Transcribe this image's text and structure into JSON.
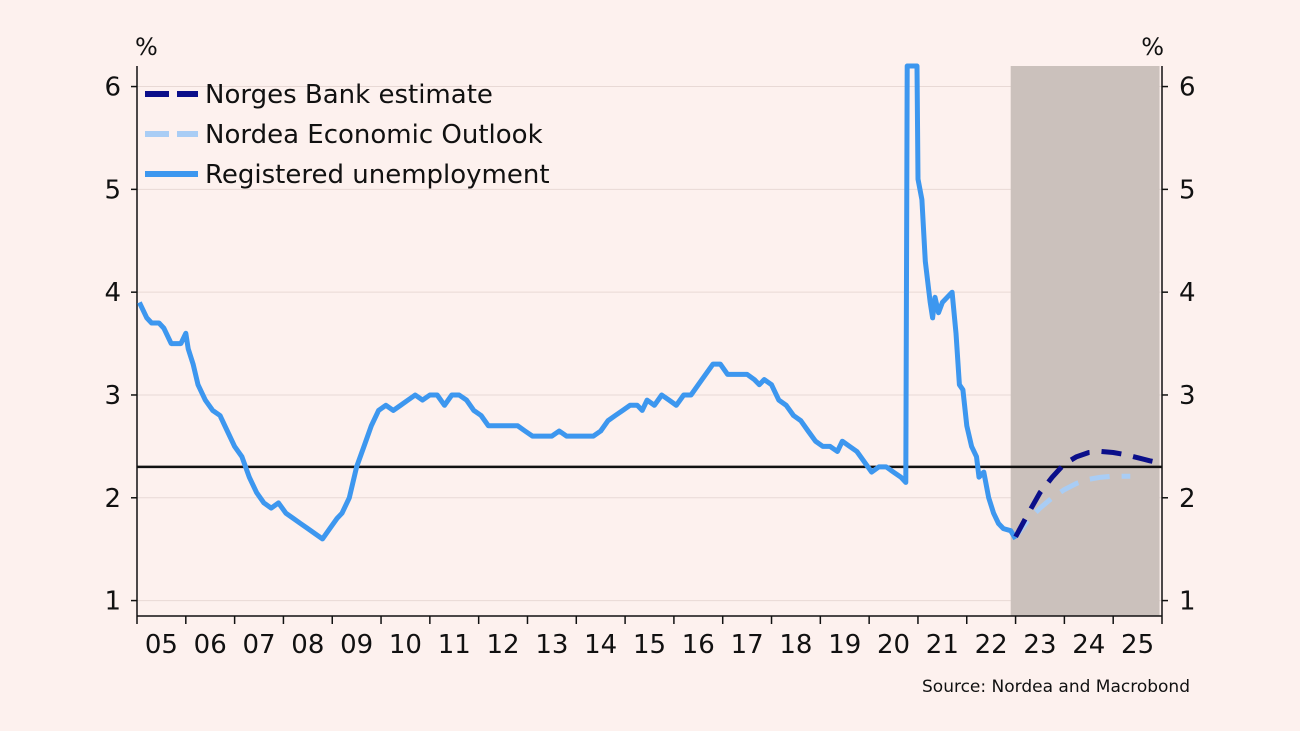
{
  "chart_data": {
    "type": "line",
    "x_unit": "year",
    "left_axis_label": "%",
    "right_axis_label": "%",
    "ylim": [
      0.85,
      6.2
    ],
    "yticks": [
      1,
      2,
      3,
      4,
      5,
      6
    ],
    "xlim": [
      2005.0,
      2026.0
    ],
    "xticks": [
      {
        "year": 2005.5,
        "label": "05"
      },
      {
        "year": 2006.5,
        "label": "06"
      },
      {
        "year": 2007.5,
        "label": "07"
      },
      {
        "year": 2008.5,
        "label": "08"
      },
      {
        "year": 2009.5,
        "label": "09"
      },
      {
        "year": 2010.5,
        "label": "10"
      },
      {
        "year": 2011.5,
        "label": "11"
      },
      {
        "year": 2012.5,
        "label": "12"
      },
      {
        "year": 2013.5,
        "label": "13"
      },
      {
        "year": 2014.5,
        "label": "14"
      },
      {
        "year": 2015.5,
        "label": "15"
      },
      {
        "year": 2016.5,
        "label": "16"
      },
      {
        "year": 2017.5,
        "label": "17"
      },
      {
        "year": 2018.5,
        "label": "18"
      },
      {
        "year": 2019.5,
        "label": "19"
      },
      {
        "year": 2020.5,
        "label": "20"
      },
      {
        "year": 2021.5,
        "label": "21"
      },
      {
        "year": 2022.5,
        "label": "22"
      },
      {
        "year": 2023.5,
        "label": "23"
      },
      {
        "year": 2024.5,
        "label": "24"
      },
      {
        "year": 2025.5,
        "label": "25"
      }
    ],
    "reference_line": {
      "value": 2.3,
      "color": "#111111"
    },
    "forecast_shading": {
      "from": 2022.9,
      "to": 2025.95,
      "color": "#cbc1bc"
    },
    "grid": true,
    "legend_position": "top-left",
    "series": [
      {
        "name": "Norges Bank estimate",
        "color": "#0b0f8a",
        "style": "dashed",
        "points": [
          [
            2023.0,
            1.62
          ],
          [
            2023.25,
            1.84
          ],
          [
            2023.5,
            2.05
          ],
          [
            2023.75,
            2.2
          ],
          [
            2024.0,
            2.33
          ],
          [
            2024.25,
            2.4
          ],
          [
            2024.5,
            2.44
          ],
          [
            2024.75,
            2.45
          ],
          [
            2025.0,
            2.44
          ],
          [
            2025.25,
            2.42
          ],
          [
            2025.5,
            2.39
          ],
          [
            2025.75,
            2.36
          ],
          [
            2025.95,
            2.34
          ]
        ]
      },
      {
        "name": "Nordea Economic Outlook",
        "color": "#a9cdf5",
        "style": "dashed",
        "points": [
          [
            2023.0,
            1.62
          ],
          [
            2023.25,
            1.78
          ],
          [
            2023.5,
            1.9
          ],
          [
            2023.75,
            2.0
          ],
          [
            2024.0,
            2.08
          ],
          [
            2024.25,
            2.14
          ],
          [
            2024.5,
            2.18
          ],
          [
            2024.75,
            2.2
          ],
          [
            2025.0,
            2.21
          ],
          [
            2025.35,
            2.21
          ]
        ]
      },
      {
        "name": "Registered unemployment",
        "color": "#3d97ef",
        "style": "solid",
        "points": [
          [
            2005.05,
            3.9
          ],
          [
            2005.2,
            3.75
          ],
          [
            2005.3,
            3.7
          ],
          [
            2005.45,
            3.7
          ],
          [
            2005.55,
            3.65
          ],
          [
            2005.7,
            3.5
          ],
          [
            2005.9,
            3.5
          ],
          [
            2006.0,
            3.6
          ],
          [
            2006.05,
            3.45
          ],
          [
            2006.15,
            3.3
          ],
          [
            2006.25,
            3.1
          ],
          [
            2006.4,
            2.95
          ],
          [
            2006.55,
            2.85
          ],
          [
            2006.7,
            2.8
          ],
          [
            2006.85,
            2.65
          ],
          [
            2007.0,
            2.5
          ],
          [
            2007.15,
            2.4
          ],
          [
            2007.3,
            2.2
          ],
          [
            2007.45,
            2.05
          ],
          [
            2007.6,
            1.95
          ],
          [
            2007.75,
            1.9
          ],
          [
            2007.9,
            1.95
          ],
          [
            2008.05,
            1.85
          ],
          [
            2008.2,
            1.8
          ],
          [
            2008.35,
            1.75
          ],
          [
            2008.5,
            1.7
          ],
          [
            2008.65,
            1.65
          ],
          [
            2008.8,
            1.6
          ],
          [
            2008.95,
            1.7
          ],
          [
            2009.1,
            1.8
          ],
          [
            2009.2,
            1.85
          ],
          [
            2009.35,
            2.0
          ],
          [
            2009.5,
            2.3
          ],
          [
            2009.65,
            2.5
          ],
          [
            2009.8,
            2.7
          ],
          [
            2009.95,
            2.85
          ],
          [
            2010.1,
            2.9
          ],
          [
            2010.25,
            2.85
          ],
          [
            2010.4,
            2.9
          ],
          [
            2010.55,
            2.95
          ],
          [
            2010.7,
            3.0
          ],
          [
            2010.85,
            2.95
          ],
          [
            2011.0,
            3.0
          ],
          [
            2011.15,
            3.0
          ],
          [
            2011.3,
            2.9
          ],
          [
            2011.45,
            3.0
          ],
          [
            2011.6,
            3.0
          ],
          [
            2011.75,
            2.95
          ],
          [
            2011.9,
            2.85
          ],
          [
            2012.05,
            2.8
          ],
          [
            2012.2,
            2.7
          ],
          [
            2012.4,
            2.7
          ],
          [
            2012.6,
            2.7
          ],
          [
            2012.8,
            2.7
          ],
          [
            2012.95,
            2.65
          ],
          [
            2013.1,
            2.6
          ],
          [
            2013.3,
            2.6
          ],
          [
            2013.5,
            2.6
          ],
          [
            2013.65,
            2.65
          ],
          [
            2013.8,
            2.6
          ],
          [
            2014.0,
            2.6
          ],
          [
            2014.2,
            2.6
          ],
          [
            2014.35,
            2.6
          ],
          [
            2014.5,
            2.65
          ],
          [
            2014.65,
            2.75
          ],
          [
            2014.8,
            2.8
          ],
          [
            2014.95,
            2.85
          ],
          [
            2015.1,
            2.9
          ],
          [
            2015.25,
            2.9
          ],
          [
            2015.35,
            2.85
          ],
          [
            2015.45,
            2.95
          ],
          [
            2015.6,
            2.9
          ],
          [
            2015.75,
            3.0
          ],
          [
            2015.9,
            2.95
          ],
          [
            2016.05,
            2.9
          ],
          [
            2016.2,
            3.0
          ],
          [
            2016.35,
            3.0
          ],
          [
            2016.5,
            3.1
          ],
          [
            2016.65,
            3.2
          ],
          [
            2016.8,
            3.3
          ],
          [
            2016.95,
            3.3
          ],
          [
            2017.1,
            3.2
          ],
          [
            2017.3,
            3.2
          ],
          [
            2017.5,
            3.2
          ],
          [
            2017.65,
            3.15
          ],
          [
            2017.75,
            3.1
          ],
          [
            2017.85,
            3.15
          ],
          [
            2018.0,
            3.1
          ],
          [
            2018.15,
            2.95
          ],
          [
            2018.3,
            2.9
          ],
          [
            2018.45,
            2.8
          ],
          [
            2018.6,
            2.75
          ],
          [
            2018.75,
            2.65
          ],
          [
            2018.9,
            2.55
          ],
          [
            2019.05,
            2.5
          ],
          [
            2019.2,
            2.5
          ],
          [
            2019.35,
            2.45
          ],
          [
            2019.45,
            2.55
          ],
          [
            2019.6,
            2.5
          ],
          [
            2019.75,
            2.45
          ],
          [
            2019.9,
            2.35
          ],
          [
            2020.05,
            2.25
          ],
          [
            2020.2,
            2.3
          ],
          [
            2020.35,
            2.3
          ],
          [
            2020.5,
            2.25
          ],
          [
            2020.65,
            2.2
          ],
          [
            2020.75,
            2.15
          ],
          [
            2020.78,
            6.2
          ],
          [
            2020.98,
            6.2
          ],
          [
            2021.0,
            5.1
          ],
          [
            2021.08,
            4.9
          ],
          [
            2021.15,
            4.3
          ],
          [
            2021.25,
            3.9
          ],
          [
            2021.3,
            3.75
          ],
          [
            2021.35,
            3.95
          ],
          [
            2021.42,
            3.8
          ],
          [
            2021.5,
            3.9
          ],
          [
            2021.6,
            3.95
          ],
          [
            2021.7,
            4.0
          ],
          [
            2021.78,
            3.6
          ],
          [
            2021.85,
            3.1
          ],
          [
            2021.92,
            3.05
          ],
          [
            2022.0,
            2.7
          ],
          [
            2022.1,
            2.5
          ],
          [
            2022.2,
            2.4
          ],
          [
            2022.25,
            2.2
          ],
          [
            2022.35,
            2.25
          ],
          [
            2022.45,
            2.0
          ],
          [
            2022.55,
            1.85
          ],
          [
            2022.65,
            1.75
          ],
          [
            2022.75,
            1.7
          ],
          [
            2022.9,
            1.68
          ],
          [
            2023.0,
            1.6
          ]
        ]
      }
    ],
    "source": "Source: Nordea and Macrobond"
  }
}
